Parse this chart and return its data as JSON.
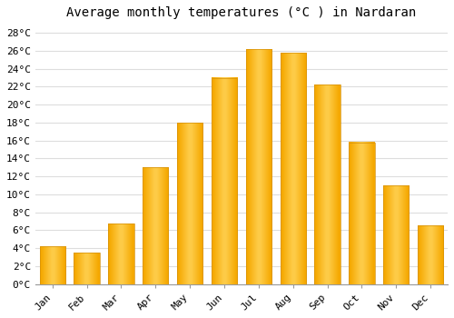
{
  "title": "Average monthly temperatures (°C ) in Nardaran",
  "months": [
    "Jan",
    "Feb",
    "Mar",
    "Apr",
    "May",
    "Jun",
    "Jul",
    "Aug",
    "Sep",
    "Oct",
    "Nov",
    "Dec"
  ],
  "temperatures": [
    4.2,
    3.5,
    6.7,
    13.0,
    18.0,
    23.0,
    26.2,
    25.8,
    22.2,
    15.8,
    11.0,
    6.5
  ],
  "bar_color_left": "#F5A800",
  "bar_color_center": "#FFD050",
  "bar_color_right": "#F5A800",
  "ylim": [
    0,
    29
  ],
  "ytick_step": 2,
  "background_color": "#FFFFFF",
  "grid_color": "#DDDDDD",
  "title_fontsize": 10,
  "tick_fontsize": 8,
  "font_family": "monospace"
}
